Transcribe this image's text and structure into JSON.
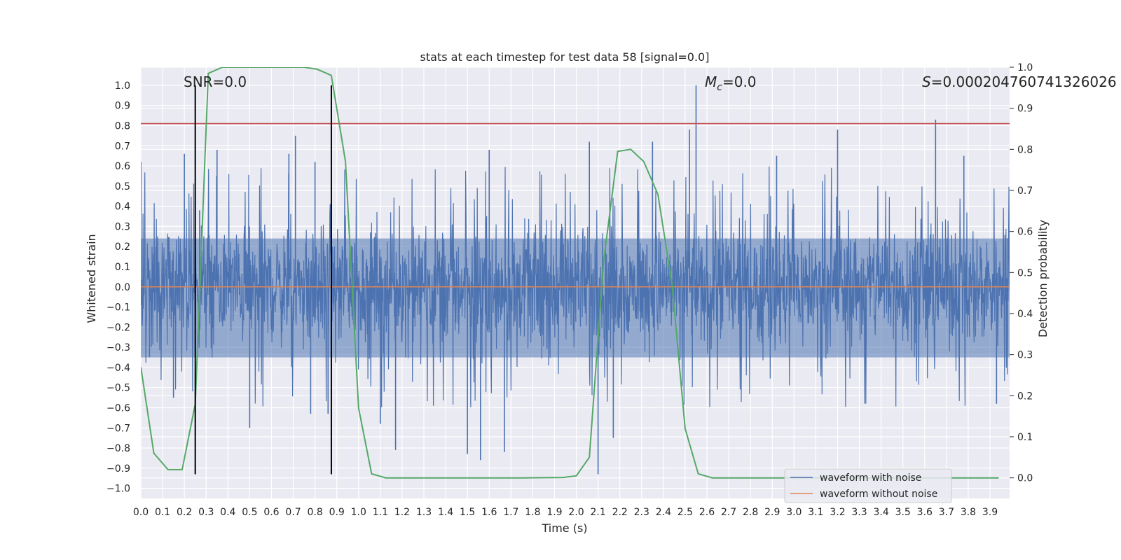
{
  "chart_data": {
    "type": "line",
    "title": "stats at each timestep for test data 58 [signal=0.0]",
    "xlabel": "Time (s)",
    "ylabel": "Whitened strain",
    "y2label": "Detection probability",
    "xlim": [
      0.0,
      3.99
    ],
    "ylim": [
      -1.05,
      1.09
    ],
    "y2lim": [
      -0.05,
      1.0
    ],
    "x_ticks": [
      "0.0",
      "0.1",
      "0.2",
      "0.3",
      "0.4",
      "0.5",
      "0.6",
      "0.7",
      "0.8",
      "0.9",
      "1.0",
      "1.1",
      "1.2",
      "1.3",
      "1.4",
      "1.5",
      "1.6",
      "1.7",
      "1.8",
      "1.9",
      "2.0",
      "2.1",
      "2.2",
      "2.3",
      "2.4",
      "2.5",
      "2.6",
      "2.7",
      "2.8",
      "2.9",
      "3.0",
      "3.1",
      "3.2",
      "3.3",
      "3.4",
      "3.5",
      "3.6",
      "3.7",
      "3.8",
      "3.9"
    ],
    "y_ticks": [
      "1.0",
      "0.9",
      "0.8",
      "0.7",
      "0.6",
      "0.5",
      "0.4",
      "0.3",
      "0.2",
      "0.1",
      "0.0",
      "−0.1",
      "−0.2",
      "−0.3",
      "−0.4",
      "−0.5",
      "−0.6",
      "−0.7",
      "−0.8",
      "−0.9",
      "−1.0"
    ],
    "y2_ticks": [
      "1.0",
      "0.9",
      "0.8",
      "0.7",
      "0.6",
      "0.5",
      "0.4",
      "0.3",
      "0.2",
      "0.1",
      "0.0"
    ],
    "grid": true,
    "legend_position": "bottom-right",
    "annotations": {
      "snr": "SNR=0.0",
      "mc_symbol": "M",
      "mc_sub": "c",
      "mc_value": "=0.0",
      "s_symbol": "S",
      "s_value": "=0.000204760741326026"
    },
    "series": [
      {
        "name": "waveform with noise",
        "color": "#4c72b0",
        "kind": "noise",
        "band_low": -0.35,
        "band_high": 0.24,
        "spikes": [
          [
            0.0,
            0.62
          ],
          [
            0.04,
            -0.35
          ],
          [
            0.15,
            -0.55
          ],
          [
            0.2,
            0.66
          ],
          [
            0.27,
            0.38
          ],
          [
            0.35,
            0.68
          ],
          [
            0.5,
            -0.7
          ],
          [
            0.71,
            0.75
          ],
          [
            0.78,
            -0.63
          ],
          [
            0.8,
            0.62
          ],
          [
            0.86,
            -0.63
          ],
          [
            1.1,
            -0.68
          ],
          [
            1.17,
            -0.81
          ],
          [
            1.5,
            -0.83
          ],
          [
            1.56,
            -0.86
          ],
          [
            1.67,
            -0.82
          ],
          [
            2.06,
            0.72
          ],
          [
            2.1,
            -0.93
          ],
          [
            2.17,
            -0.75
          ],
          [
            2.35,
            0.72
          ],
          [
            2.52,
            0.78
          ],
          [
            2.55,
            1.0
          ],
          [
            3.2,
            0.78
          ],
          [
            3.65,
            0.83
          ],
          [
            3.78,
            0.65
          ],
          [
            3.93,
            -0.58
          ],
          [
            0.68,
            0.66
          ],
          [
            1.6,
            0.68
          ],
          [
            2.92,
            0.65
          ]
        ]
      },
      {
        "name": "waveform without noise",
        "color": "#dd8452",
        "kind": "constant",
        "value": 0.0
      },
      {
        "name": "detection probability",
        "color": "#55a868",
        "axis": "right",
        "x": [
          0.0,
          0.06,
          0.125,
          0.19,
          0.25,
          0.31,
          0.375,
          0.44,
          0.5,
          0.56,
          0.625,
          0.69,
          0.75,
          0.81,
          0.875,
          0.94,
          1.0,
          1.06,
          1.125,
          1.19,
          1.25,
          1.5,
          1.75,
          1.94,
          2.0,
          2.06,
          2.125,
          2.19,
          2.25,
          2.31,
          2.375,
          2.44,
          2.5,
          2.56,
          2.625,
          2.69,
          3.0,
          3.5,
          3.94
        ],
        "y": [
          0.27,
          0.06,
          0.02,
          0.02,
          0.18,
          0.985,
          1.0,
          1.0,
          1.0,
          1.0,
          1.0,
          1.0,
          1.0,
          0.995,
          0.98,
          0.77,
          0.17,
          0.01,
          0.0,
          0.0,
          0.0,
          0.0,
          0.0,
          0.001,
          0.005,
          0.05,
          0.525,
          0.795,
          0.8,
          0.77,
          0.69,
          0.47,
          0.12,
          0.01,
          0.0,
          0.0,
          0.0,
          0.0,
          0.0
        ]
      }
    ],
    "hlines": [
      {
        "value": 0.81,
        "color": "#c44e52"
      }
    ],
    "vlines": [
      {
        "x": 0.25,
        "ymin": -0.93,
        "ymax": 1.0,
        "color": "#000000"
      },
      {
        "x": 0.875,
        "ymin": -0.93,
        "ymax": 1.0,
        "color": "#000000"
      }
    ]
  }
}
